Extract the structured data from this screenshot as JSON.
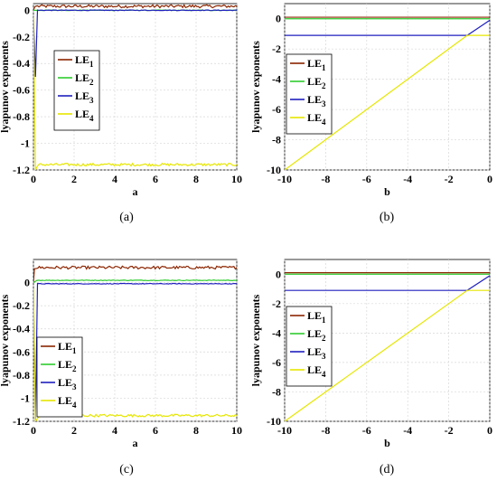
{
  "chart_data": [
    {
      "type": "line",
      "caption": "(a)",
      "xlabel": "a",
      "ylabel": "lyapunov exponents",
      "xlim": [
        0,
        10
      ],
      "ylim": [
        -1.2,
        0.05
      ],
      "xticks": [
        0,
        2,
        4,
        6,
        8,
        10
      ],
      "yticks": [
        0,
        -0.2,
        -0.4,
        -0.6,
        -0.8,
        -1,
        -1.2
      ],
      "xtick_labels": [
        "0",
        "2",
        "4",
        "6",
        "8",
        "10"
      ],
      "ytick_labels": [
        "0",
        "-0.2",
        "-0.4",
        "-0.6",
        "-0.8",
        "-1",
        "-1.2"
      ],
      "grid": true,
      "legend_position": "left",
      "series": [
        {
          "name": "LE1",
          "color": "#8b2500",
          "x": [
            0,
            0.05,
            0.1,
            0.2,
            10
          ],
          "y": [
            0,
            0.02,
            0.03,
            0.03,
            0.03
          ]
        },
        {
          "name": "LE2",
          "color": "#2ecc2e",
          "x": [
            0,
            0.1,
            0.2,
            10
          ],
          "y": [
            0,
            0,
            0,
            0
          ]
        },
        {
          "name": "LE3",
          "color": "#1f1fbf",
          "x": [
            0,
            0.1,
            0.2,
            10
          ],
          "y": [
            -0.05,
            -0.5,
            0,
            0
          ]
        },
        {
          "name": "LE4",
          "color": "#e6e600",
          "x": [
            0,
            0.1,
            0.2,
            0.3,
            10
          ],
          "y": [
            -0.05,
            -1.2,
            -1.17,
            -1.16,
            -1.16
          ]
        }
      ]
    },
    {
      "type": "line",
      "caption": "(b)",
      "xlabel": "b",
      "ylabel": "lyapunov exponents",
      "xlim": [
        -10,
        0
      ],
      "ylim": [
        -10,
        1
      ],
      "xticks": [
        -10,
        -8,
        -6,
        -4,
        -2,
        0
      ],
      "yticks": [
        0,
        -2,
        -4,
        -6,
        -8,
        -10
      ],
      "xtick_labels": [
        "-10",
        "-8",
        "-6",
        "-4",
        "-2",
        "0"
      ],
      "ytick_labels": [
        "0",
        "-2",
        "-4",
        "-6",
        "-8",
        "-10"
      ],
      "grid": true,
      "legend_position": "left",
      "series": [
        {
          "name": "LE1",
          "color": "#8b2500",
          "x": [
            -10,
            0
          ],
          "y": [
            0.1,
            0.1
          ]
        },
        {
          "name": "LE2",
          "color": "#2ecc2e",
          "x": [
            -10,
            0
          ],
          "y": [
            0,
            0
          ]
        },
        {
          "name": "LE3",
          "color": "#1f1fbf",
          "x": [
            -10,
            -1.1,
            0
          ],
          "y": [
            -1.1,
            -1.1,
            -0.1
          ]
        },
        {
          "name": "LE4",
          "color": "#e6e600",
          "x": [
            -10,
            -1.1,
            0
          ],
          "y": [
            -10,
            -1.1,
            -1.1
          ]
        }
      ]
    },
    {
      "type": "line",
      "caption": "(c)",
      "xlabel": "a",
      "ylabel": "lyapunov exponents",
      "xlim": [
        0,
        10
      ],
      "ylim": [
        -1.2,
        0.2
      ],
      "xticks": [
        0,
        2,
        4,
        6,
        8,
        10
      ],
      "yticks": [
        0,
        -0.2,
        -0.4,
        -0.6,
        -0.8,
        -1,
        -1.2
      ],
      "xtick_labels": [
        "0",
        "2",
        "4",
        "6",
        "8",
        "10"
      ],
      "ytick_labels": [
        "0",
        "-0.2",
        "-0.4",
        "-0.6",
        "-0.8",
        "-1",
        "-1.2"
      ],
      "grid": true,
      "legend_position": "bottom-left",
      "series": [
        {
          "name": "LE1",
          "color": "#8b2500",
          "x": [
            0,
            0.05,
            0.15,
            10
          ],
          "y": [
            0,
            0.12,
            0.13,
            0.13
          ]
        },
        {
          "name": "LE2",
          "color": "#2ecc2e",
          "x": [
            0,
            0.15,
            10
          ],
          "y": [
            0,
            0.02,
            0.02
          ]
        },
        {
          "name": "LE3",
          "color": "#1f1fbf",
          "x": [
            0,
            0.1,
            0.2,
            10
          ],
          "y": [
            -0.05,
            -1.2,
            -0.01,
            -0.01
          ]
        },
        {
          "name": "LE4",
          "color": "#e6e600",
          "x": [
            0,
            0.1,
            0.3,
            10
          ],
          "y": [
            -0.05,
            -1.2,
            -1.15,
            -1.15
          ]
        }
      ]
    },
    {
      "type": "line",
      "caption": "(d)",
      "xlabel": "b",
      "ylabel": "lyapunov exponents",
      "xlim": [
        -10,
        0
      ],
      "ylim": [
        -10,
        1
      ],
      "xticks": [
        -10,
        -8,
        -6,
        -4,
        -2,
        0
      ],
      "yticks": [
        0,
        -2,
        -4,
        -6,
        -8,
        -10
      ],
      "xtick_labels": [
        "-10",
        "-8",
        "-6",
        "-4",
        "-2",
        "0"
      ],
      "ytick_labels": [
        "0",
        "-2",
        "-4",
        "-6",
        "-8",
        "-10"
      ],
      "grid": true,
      "legend_position": "left",
      "series": [
        {
          "name": "LE1",
          "color": "#8b2500",
          "x": [
            -10,
            0
          ],
          "y": [
            0.1,
            0.1
          ]
        },
        {
          "name": "LE2",
          "color": "#2ecc2e",
          "x": [
            -10,
            0
          ],
          "y": [
            0,
            0
          ]
        },
        {
          "name": "LE3",
          "color": "#1f1fbf",
          "x": [
            -10,
            -1.1,
            0
          ],
          "y": [
            -1.1,
            -1.1,
            -0.1
          ]
        },
        {
          "name": "LE4",
          "color": "#e6e600",
          "x": [
            -10,
            -1.1,
            0
          ],
          "y": [
            -10,
            -1.1,
            -1.1
          ]
        }
      ]
    }
  ]
}
